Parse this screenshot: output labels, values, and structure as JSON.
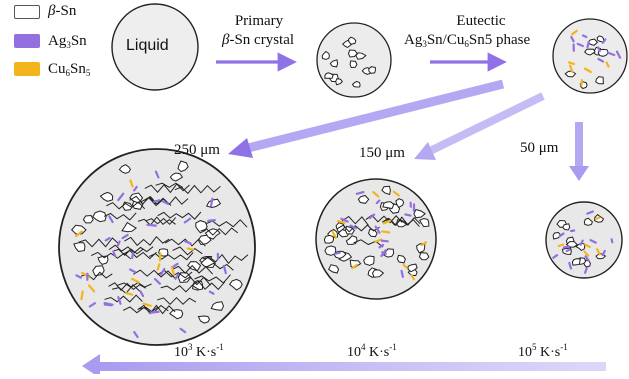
{
  "legend": {
    "items": [
      {
        "symbol": "β",
        "text": "-Sn",
        "color": "#ffffff",
        "border": "#555555"
      },
      {
        "symbol": "Ag",
        "sub1": "3",
        "text": "Sn",
        "color": "#9370e0"
      },
      {
        "symbol": "Cu",
        "sub1": "6",
        "mid": "Sn",
        "sub2": "5",
        "color": "#f3b51b"
      }
    ]
  },
  "stages": {
    "liquid": "Liquid",
    "primary_line1": "Primary",
    "primary_greek": "β",
    "primary_line2": "-Sn crystal",
    "eutectic_line1": "Eutectic",
    "eutectic_ag": "Ag",
    "eutectic_ag_sub": "3",
    "eutectic_mid": "Sn/Cu",
    "eutectic_cu_sub": "6",
    "eutectic_end": "Sn5 phase"
  },
  "sizes": {
    "large": "250 μm",
    "medium": "150 μm",
    "small": "50 μm"
  },
  "cooling_rates": [
    {
      "base": "10",
      "exp": "3",
      "unit": "K·s",
      "unit_exp": "-1"
    },
    {
      "base": "10",
      "exp": "4",
      "unit": "K·s",
      "unit_exp": "-1"
    },
    {
      "base": "10",
      "exp": "5",
      "unit": "K·s",
      "unit_exp": "-1"
    }
  ],
  "colors": {
    "arrow": "#a99bf0",
    "arrow_dark": "#8e72e6",
    "ag3sn": "#9370e0",
    "cu6sn5": "#f3b51b",
    "liquid_fill": "#eeeeee",
    "grain_fill": "#ffffff",
    "matrix": "#e6e6e6"
  }
}
